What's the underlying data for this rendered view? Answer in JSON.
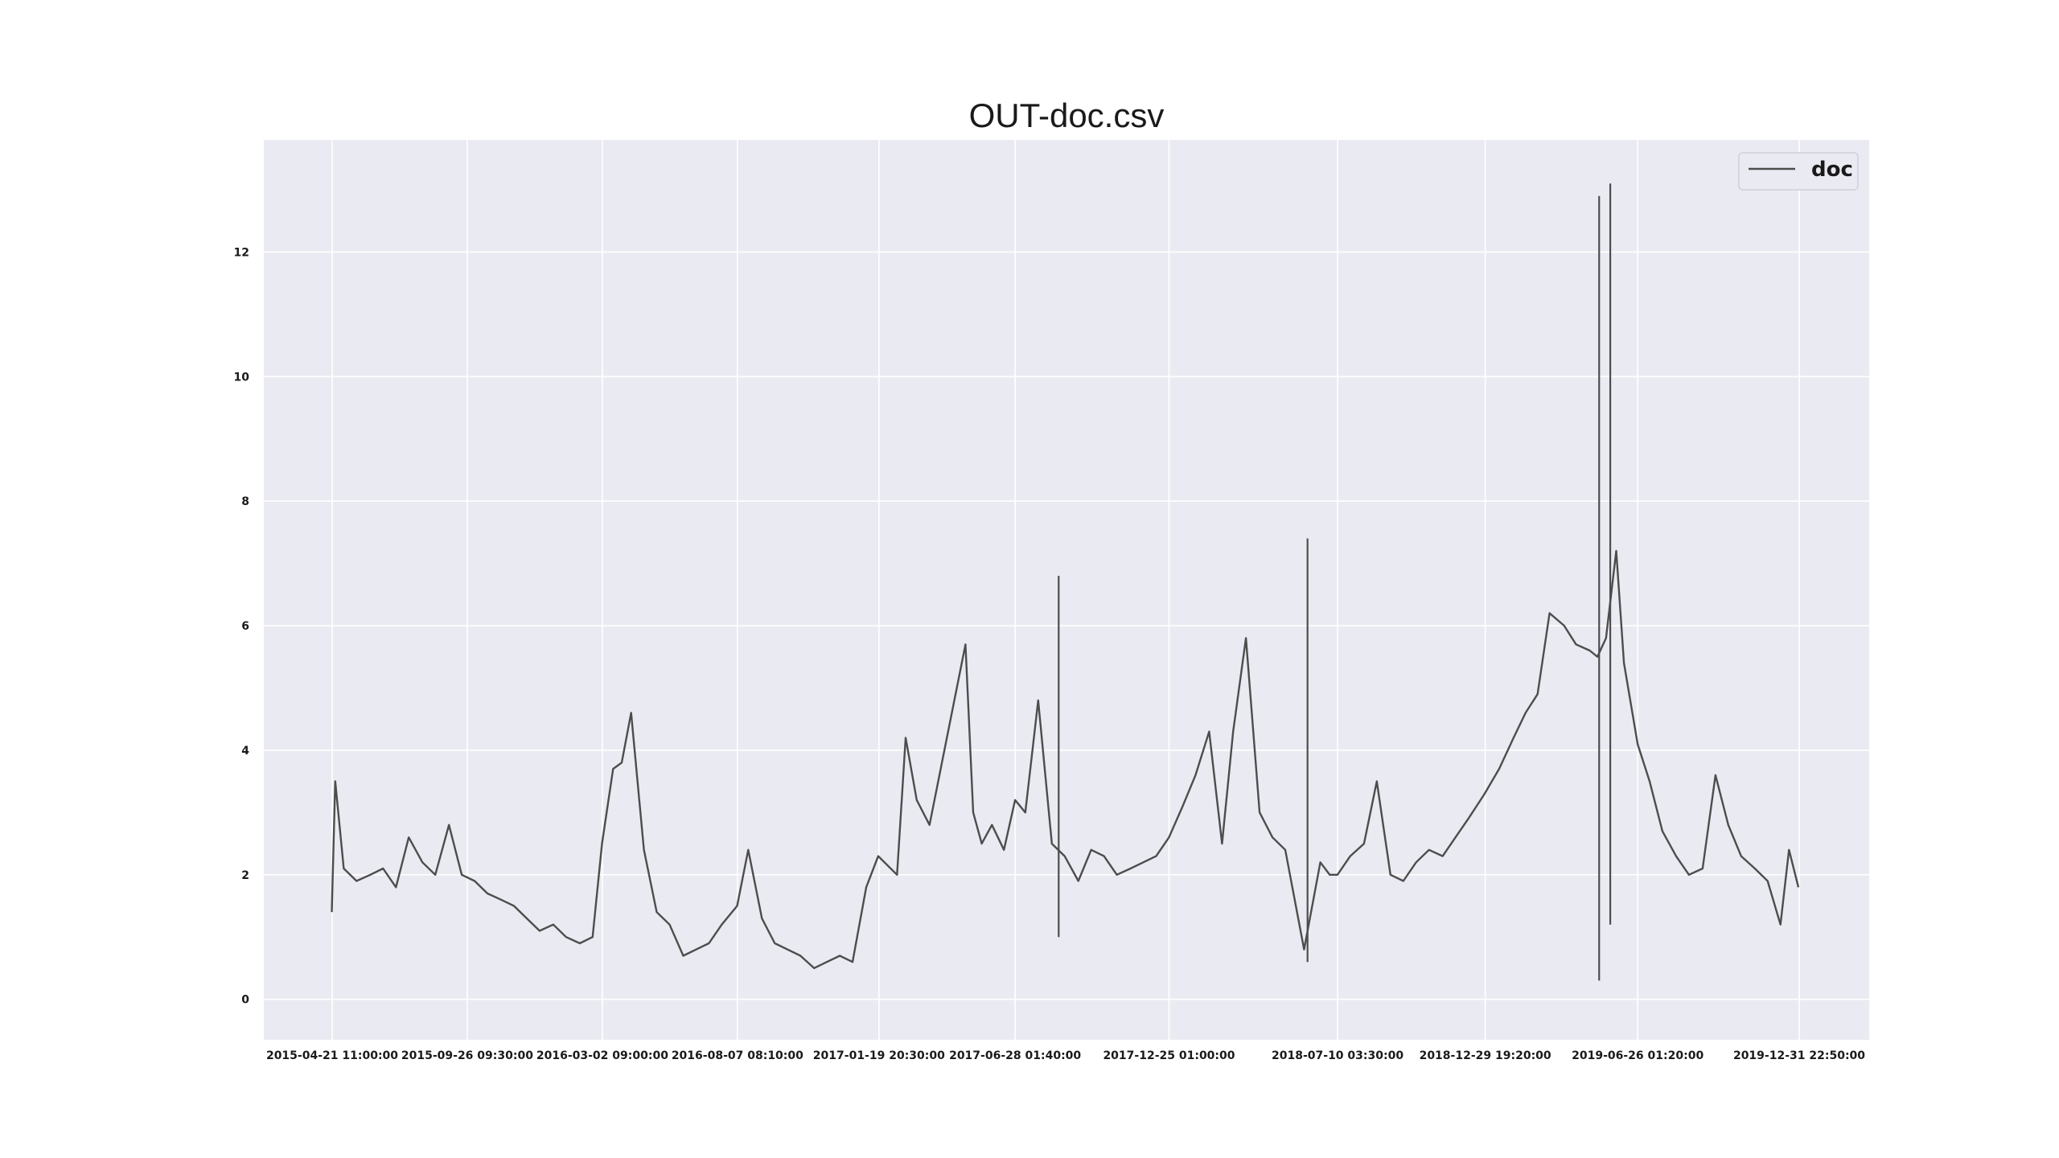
{
  "chart_data": {
    "type": "line",
    "title": "OUT-doc.csv",
    "xlabel": "",
    "ylabel": "",
    "x_tick_labels": [
      "2015-04-21 11:00:00",
      "2015-09-26 09:30:00",
      "2016-03-02 09:00:00",
      "2016-08-07 08:10:00",
      "2017-01-19 20:30:00",
      "2017-06-28 01:40:00",
      "2017-12-25 01:00:00",
      "2018-07-10 03:30:00",
      "2018-12-29 19:20:00",
      "2019-06-26 01:20:00",
      "2019-12-31 22:50:00"
    ],
    "y_ticks": [
      0,
      2,
      4,
      6,
      8,
      10,
      12
    ],
    "ylim": [
      -0.65,
      13.8
    ],
    "grid": true,
    "legend_position": "top-right",
    "colors": {
      "plot_background": "#eaeaf2",
      "grid": "#ffffff",
      "line": "#4d4d4d"
    },
    "series": [
      {
        "name": "doc",
        "x": [
          "2015-04-21",
          "2015-04-25",
          "2015-05-05",
          "2015-05-20",
          "2015-06-05",
          "2015-06-20",
          "2015-07-05",
          "2015-07-20",
          "2015-08-05",
          "2015-08-20",
          "2015-09-05",
          "2015-09-20",
          "2015-10-05",
          "2015-10-20",
          "2015-11-05",
          "2015-11-20",
          "2015-12-05",
          "2015-12-20",
          "2016-01-05",
          "2016-01-20",
          "2016-02-05",
          "2016-02-20",
          "2016-03-02",
          "2016-03-15",
          "2016-03-25",
          "2016-04-05",
          "2016-04-20",
          "2016-05-05",
          "2016-05-20",
          "2016-06-05",
          "2016-06-20",
          "2016-07-05",
          "2016-07-20",
          "2016-08-07",
          "2016-08-20",
          "2016-09-05",
          "2016-09-20",
          "2016-10-05",
          "2016-10-20",
          "2016-11-05",
          "2016-11-20",
          "2016-12-05",
          "2016-12-20",
          "2017-01-05",
          "2017-01-19",
          "2017-02-10",
          "2017-02-20",
          "2017-03-05",
          "2017-03-20",
          "2017-05-01",
          "2017-05-10",
          "2017-05-20",
          "2017-06-01",
          "2017-06-15",
          "2017-06-28",
          "2017-07-10",
          "2017-07-25",
          "2017-08-10",
          "2017-08-25",
          "2017-09-10",
          "2017-09-25",
          "2017-10-10",
          "2017-10-25",
          "2017-11-10",
          "2017-11-25",
          "2017-12-10",
          "2017-12-25",
          "2018-01-10",
          "2018-01-25",
          "2018-02-10",
          "2018-02-25",
          "2018-03-10",
          "2018-03-25",
          "2018-04-10",
          "2018-04-25",
          "2018-05-10",
          "2018-06-01",
          "2018-06-20",
          "2018-07-01",
          "2018-07-10",
          "2018-07-25",
          "2018-08-10",
          "2018-08-25",
          "2018-09-10",
          "2018-09-25",
          "2018-10-10",
          "2018-10-25",
          "2018-11-10",
          "2018-11-25",
          "2018-12-10",
          "2018-12-29",
          "2019-01-15",
          "2019-02-01",
          "2019-02-15",
          "2019-03-01",
          "2019-03-15",
          "2019-04-01",
          "2019-04-15",
          "2019-05-01",
          "2019-05-10",
          "2019-05-20",
          "2019-06-01",
          "2019-06-10",
          "2019-06-26",
          "2019-07-10",
          "2019-07-25",
          "2019-08-10",
          "2019-08-25",
          "2019-09-10",
          "2019-09-25",
          "2019-10-10",
          "2019-10-25",
          "2019-11-10",
          "2019-11-25",
          "2019-12-10",
          "2019-12-20",
          "2019-12-31"
        ],
        "values": [
          1.4,
          3.5,
          2.1,
          1.9,
          2.0,
          2.1,
          1.8,
          2.6,
          2.2,
          2.0,
          2.8,
          2.0,
          1.9,
          1.7,
          1.6,
          1.5,
          1.3,
          1.1,
          1.2,
          1.0,
          0.9,
          1.0,
          2.5,
          3.7,
          3.8,
          4.6,
          2.4,
          1.4,
          1.2,
          0.7,
          0.8,
          0.9,
          1.2,
          1.5,
          2.4,
          1.3,
          0.9,
          0.8,
          0.7,
          0.5,
          0.6,
          0.7,
          0.6,
          1.8,
          2.3,
          2.0,
          4.2,
          3.2,
          2.8,
          5.7,
          3.0,
          2.5,
          2.8,
          2.4,
          3.2,
          3.0,
          4.8,
          2.5,
          2.3,
          1.9,
          2.4,
          2.3,
          2.0,
          2.1,
          2.2,
          2.3,
          2.6,
          3.1,
          3.6,
          4.3,
          2.5,
          4.3,
          5.8,
          3.0,
          2.6,
          2.4,
          0.8,
          2.2,
          2.0,
          2.0,
          2.3,
          2.5,
          3.5,
          2.0,
          1.9,
          2.2,
          2.4,
          2.3,
          2.6,
          2.9,
          3.3,
          3.7,
          4.2,
          4.6,
          4.9,
          6.2,
          6.0,
          5.7,
          5.6,
          5.5,
          5.8,
          7.2,
          5.4,
          4.1,
          3.5,
          2.7,
          2.3,
          2.0,
          2.1,
          3.6,
          2.8,
          2.3,
          2.1,
          1.9,
          1.2,
          2.4,
          1.8
        ],
        "spikes": [
          {
            "x": "2019-05-12",
            "low": 0.3,
            "high": 12.9
          },
          {
            "x": "2019-05-25",
            "low": 1.2,
            "high": 13.1
          },
          {
            "x": "2018-06-05",
            "low": 0.6,
            "high": 7.4
          },
          {
            "x": "2017-08-18",
            "low": 1.0,
            "high": 6.8
          }
        ]
      }
    ]
  }
}
